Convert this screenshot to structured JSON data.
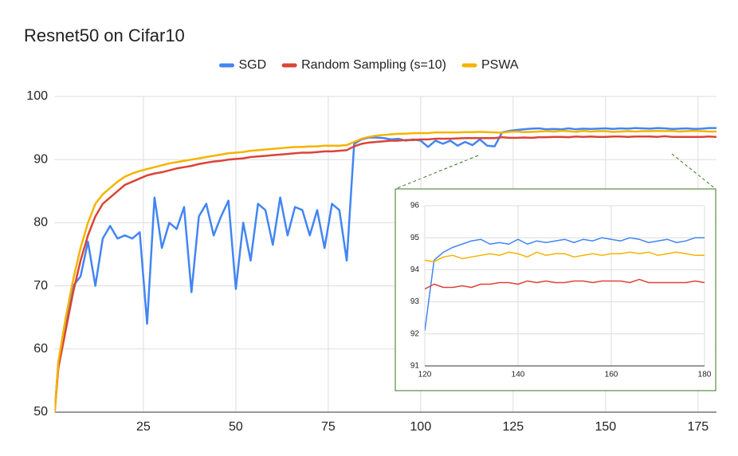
{
  "chart_data": {
    "type": "line",
    "title": "Resnet50 on Cifar10",
    "legend": "top",
    "grid": true,
    "x": [
      1,
      2,
      4,
      6,
      8,
      10,
      12,
      14,
      16,
      18,
      20,
      22,
      24,
      26,
      28,
      30,
      32,
      34,
      36,
      38,
      40,
      42,
      44,
      46,
      48,
      50,
      52,
      54,
      56,
      58,
      60,
      62,
      64,
      66,
      68,
      70,
      72,
      74,
      76,
      78,
      80,
      82,
      84,
      86,
      88,
      90,
      92,
      94,
      96,
      98,
      100,
      102,
      104,
      106,
      108,
      110,
      112,
      114,
      116,
      118,
      120,
      122,
      124,
      126,
      128,
      130,
      132,
      134,
      136,
      138,
      140,
      142,
      144,
      146,
      148,
      150,
      152,
      154,
      156,
      158,
      160,
      162,
      164,
      166,
      168,
      170,
      172,
      174,
      176,
      178,
      180
    ],
    "series": [
      {
        "name": "SGD",
        "color": "#4285f4",
        "values": [
          50,
          58,
          63.5,
          70,
          71.5,
          77,
          70,
          77.5,
          79.5,
          77.5,
          78,
          77.5,
          78.5,
          64,
          84,
          76,
          80,
          79,
          82.5,
          69,
          81,
          83,
          78,
          81,
          83.5,
          69.5,
          80,
          74,
          83,
          82,
          76.5,
          84,
          78,
          82.5,
          82,
          78,
          82,
          76,
          83,
          82,
          74,
          92.5,
          93.2,
          93.5,
          93.5,
          93.4,
          93.2,
          93.3,
          93,
          93.2,
          93,
          92,
          93,
          92.5,
          93,
          92.2,
          92.8,
          92.3,
          93.2,
          92.2,
          92.1,
          94.3,
          94.55,
          94.7,
          94.8,
          94.9,
          94.95,
          94.8,
          94.85,
          94.8,
          94.95,
          94.8,
          94.9,
          94.85,
          94.9,
          94.95,
          94.85,
          94.95,
          94.9,
          95,
          94.95,
          94.9,
          95,
          94.95,
          94.85,
          94.9,
          94.95,
          94.85,
          94.9,
          95,
          95
        ]
      },
      {
        "name": "Random Sampling (s=10)",
        "color": "#db4437",
        "values": [
          50,
          57,
          63,
          69,
          74,
          78,
          81,
          83,
          84,
          85,
          86,
          86.5,
          87,
          87.5,
          87.8,
          88,
          88.3,
          88.6,
          88.8,
          89,
          89.3,
          89.5,
          89.7,
          89.8,
          90,
          90.1,
          90.2,
          90.4,
          90.5,
          90.6,
          90.7,
          90.8,
          90.9,
          91,
          91.1,
          91.1,
          91.2,
          91.3,
          91.3,
          91.4,
          91.5,
          92.1,
          92.5,
          92.7,
          92.8,
          92.9,
          93,
          93,
          93.1,
          93.1,
          93.2,
          93.2,
          93.3,
          93.3,
          93.3,
          93.35,
          93.4,
          93.4,
          93.4,
          93.4,
          93.4,
          93.55,
          93.45,
          93.45,
          93.5,
          93.45,
          93.55,
          93.55,
          93.6,
          93.6,
          93.55,
          93.65,
          93.6,
          93.65,
          93.6,
          93.6,
          93.65,
          93.65,
          93.6,
          93.65,
          93.65,
          93.65,
          93.6,
          93.7,
          93.6,
          93.6,
          93.6,
          93.6,
          93.6,
          93.65,
          93.6
        ]
      },
      {
        "name": "PSWA",
        "color": "#f4b400",
        "values": [
          50,
          58,
          65,
          71,
          76,
          80,
          83,
          84.5,
          85.5,
          86.5,
          87.3,
          87.8,
          88.2,
          88.5,
          88.8,
          89.1,
          89.4,
          89.6,
          89.8,
          90,
          90.2,
          90.4,
          90.6,
          90.8,
          91,
          91.1,
          91.2,
          91.4,
          91.5,
          91.6,
          91.7,
          91.8,
          91.9,
          92,
          92,
          92.1,
          92.1,
          92.2,
          92.2,
          92.2,
          92.3,
          92.8,
          93.3,
          93.6,
          93.8,
          93.9,
          94,
          94.1,
          94.1,
          94.2,
          94.2,
          94.2,
          94.3,
          94.3,
          94.3,
          94.3,
          94.35,
          94.35,
          94.4,
          94.35,
          94.3,
          94.25,
          94.4,
          94.45,
          94.35,
          94.4,
          94.45,
          94.5,
          94.45,
          94.55,
          94.5,
          94.4,
          94.55,
          94.45,
          94.5,
          94.5,
          94.4,
          94.45,
          94.5,
          94.45,
          94.5,
          94.5,
          94.55,
          94.5,
          94.55,
          94.45,
          94.5,
          94.55,
          94.5,
          94.45,
          94.45
        ]
      }
    ],
    "xlim": [
      1,
      180
    ],
    "ylim": [
      50,
      100
    ],
    "xticks": [
      25,
      50,
      75,
      100,
      125,
      150,
      175
    ],
    "yticks": [
      50,
      60,
      70,
      80,
      90,
      100
    ],
    "inset": {
      "xlim": [
        120,
        180
      ],
      "ylim": [
        91,
        96
      ],
      "xticks": [
        120,
        140,
        160,
        180
      ],
      "yticks": [
        91,
        92,
        93,
        94,
        95,
        96
      ]
    }
  }
}
